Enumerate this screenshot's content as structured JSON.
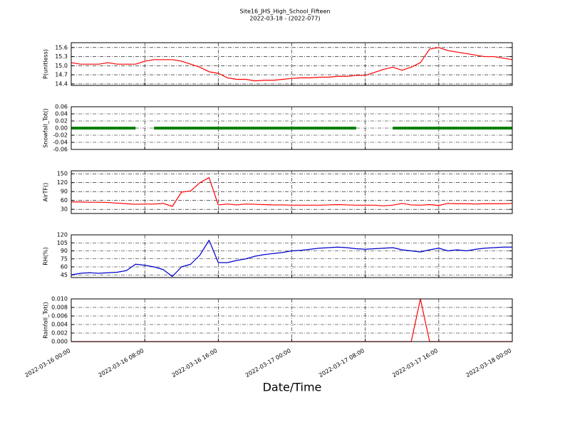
{
  "title": "Site16_JHS_High_School_Fifteen",
  "subtitle": "2022-03-18 - (2022-077)",
  "xlabel": "Date/Time",
  "xlim": [
    "2022-03-16 00:00",
    "2022-03-18 00:00"
  ],
  "xticks": [
    "2022-03-16 00:00",
    "2022-03-16 08:00",
    "2022-03-16 16:00",
    "2022-03-17 00:00",
    "2022-03-17 08:00",
    "2022-03-17 16:00",
    "2022-03-18 00:00"
  ],
  "x": [
    "2022-03-16 00:00",
    "2022-03-16 01:00",
    "2022-03-16 02:00",
    "2022-03-16 03:00",
    "2022-03-16 04:00",
    "2022-03-16 05:00",
    "2022-03-16 06:00",
    "2022-03-16 07:00",
    "2022-03-16 08:00",
    "2022-03-16 09:00",
    "2022-03-16 10:00",
    "2022-03-16 11:00",
    "2022-03-16 12:00",
    "2022-03-16 13:00",
    "2022-03-16 14:00",
    "2022-03-16 15:00",
    "2022-03-16 16:00",
    "2022-03-16 17:00",
    "2022-03-16 18:00",
    "2022-03-16 19:00",
    "2022-03-16 20:00",
    "2022-03-16 21:00",
    "2022-03-16 22:00",
    "2022-03-16 23:00",
    "2022-03-17 00:00",
    "2022-03-17 01:00",
    "2022-03-17 02:00",
    "2022-03-17 03:00",
    "2022-03-17 04:00",
    "2022-03-17 05:00",
    "2022-03-17 06:00",
    "2022-03-17 07:00",
    "2022-03-17 08:00",
    "2022-03-17 09:00",
    "2022-03-17 10:00",
    "2022-03-17 11:00",
    "2022-03-17 12:00",
    "2022-03-17 13:00",
    "2022-03-17 14:00",
    "2022-03-17 15:00",
    "2022-03-17 16:00",
    "2022-03-17 17:00",
    "2022-03-17 18:00",
    "2022-03-17 19:00",
    "2022-03-17 20:00",
    "2022-03-17 21:00",
    "2022-03-17 22:00",
    "2022-03-17 23:00",
    "2022-03-18 00:00"
  ],
  "chart_data": [
    {
      "type": "line",
      "ylabel": "P(unitless)",
      "ylim": [
        14.35,
        15.76
      ],
      "yticks": [
        14.4,
        14.7,
        {
          "value": 15,
          "label": "15.0"
        },
        15.3,
        15.6
      ],
      "grid": true,
      "series": [
        {
          "color": "#ff0000",
          "values": [
            15.1,
            15.05,
            15.05,
            15.05,
            15.1,
            15.05,
            15.05,
            15.05,
            15.15,
            15.2,
            15.2,
            15.2,
            15.15,
            15.05,
            14.95,
            14.8,
            14.75,
            14.6,
            14.55,
            14.55,
            14.5,
            14.52,
            14.52,
            14.55,
            14.58,
            14.6,
            14.6,
            14.62,
            14.62,
            14.65,
            14.65,
            14.68,
            14.68,
            14.78,
            14.88,
            14.95,
            14.85,
            14.95,
            15.1,
            15.55,
            15.6,
            15.5,
            15.45,
            15.4,
            15.35,
            15.3,
            15.3,
            15.25,
            15.2
          ]
        }
      ]
    },
    {
      "type": "line",
      "marker": true,
      "ylabel": "Snowfall_Tot()",
      "ylim": [
        -0.06,
        0.06
      ],
      "yticks": [
        -0.06,
        -0.04,
        -0.02,
        {
          "value": 0,
          "label": "0.00"
        },
        0.02,
        0.04,
        0.06
      ],
      "grid": true,
      "series": [
        {
          "color": "#008000",
          "values": [
            0,
            0,
            0,
            0,
            0,
            0,
            0,
            0,
            null,
            0,
            0,
            0,
            0,
            0,
            0,
            0,
            0,
            0,
            0,
            0,
            0,
            0,
            0,
            0,
            0,
            0,
            0,
            0,
            0,
            0,
            0,
            0,
            null,
            null,
            null,
            0,
            0,
            0,
            0,
            0,
            0,
            0,
            0,
            0,
            0,
            0,
            0,
            0,
            0
          ]
        }
      ]
    },
    {
      "type": "line",
      "ylabel": "AirTF()",
      "ylim": [
        16,
        160
      ],
      "yticks": [
        30,
        60,
        90,
        120,
        150
      ],
      "grid": true,
      "series": [
        {
          "color": "#ff0000",
          "values": [
            55,
            55,
            54,
            54,
            53,
            51,
            49,
            47,
            48,
            48,
            50,
            40,
            88,
            92,
            120,
            137,
            45,
            48,
            45,
            48,
            47,
            46,
            45,
            45,
            44,
            44,
            44,
            44,
            45,
            46,
            45,
            44,
            44,
            44,
            42,
            44,
            50,
            45,
            44,
            46,
            43,
            50,
            49,
            49,
            48,
            49,
            49,
            49,
            50
          ]
        }
      ]
    },
    {
      "type": "line",
      "ylabel": "RH(%)",
      "ylim": [
        40,
        120
      ],
      "yticks": [
        45,
        60,
        75,
        90,
        105,
        120
      ],
      "grid": true,
      "series": [
        {
          "color": "#0000cc",
          "values": [
            45,
            48,
            49,
            48,
            49,
            50,
            53,
            65,
            63,
            60,
            55,
            42,
            60,
            65,
            82,
            110,
            68,
            68,
            72,
            75,
            80,
            83,
            85,
            87,
            90,
            91,
            93,
            95,
            96,
            97,
            96,
            94,
            93,
            94,
            95,
            96,
            92,
            90,
            88,
            92,
            95,
            90,
            92,
            90,
            93,
            95,
            96,
            97,
            97
          ]
        }
      ]
    },
    {
      "type": "line",
      "ylabel": "Rainfall_Tot()",
      "ylim": [
        0,
        0.01
      ],
      "yticks": [
        {
          "value": 0,
          "label": "0.000"
        },
        {
          "value": 0.002,
          "label": "0.002"
        },
        {
          "value": 0.004,
          "label": "0.004"
        },
        {
          "value": 0.006,
          "label": "0.006"
        },
        {
          "value": 0.008,
          "label": "0.008"
        },
        {
          "value": 0.01,
          "label": "0.010"
        }
      ],
      "grid": true,
      "series": [
        {
          "color": "#ff0000",
          "values": [
            0,
            0,
            0,
            0,
            0,
            0,
            0,
            0,
            0,
            0,
            0,
            0,
            0,
            0,
            0,
            0,
            0,
            0,
            0,
            0,
            0,
            0,
            0,
            0,
            0,
            0,
            0,
            0,
            0,
            0,
            0,
            0,
            0,
            0,
            0,
            0,
            0,
            0,
            0.01,
            0,
            0,
            0,
            0,
            0,
            0,
            0,
            0,
            0,
            0
          ]
        }
      ]
    }
  ]
}
